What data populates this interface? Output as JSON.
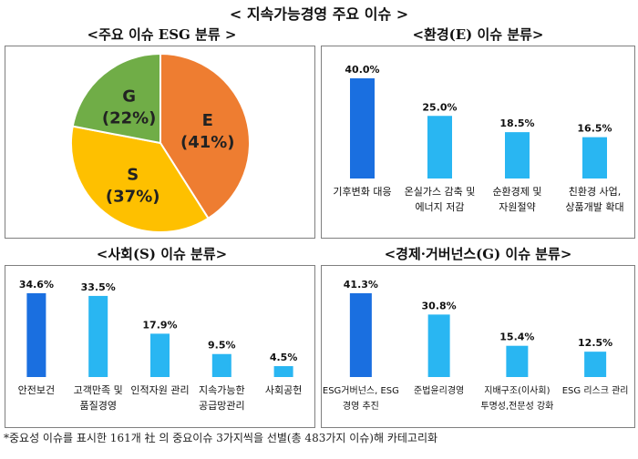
{
  "page_title": "< 지속가능경영 주요 이슈 >",
  "footnote": "*중요성 이슈를 표시한 161개 社 의 중요이슈 3가지씩을 선별(총 483가지 이슈)해 카테고리화",
  "colors": {
    "dark_bar": "#1a6fe0",
    "light_bar": "#29b6f2",
    "e_slice": "#ee7d31",
    "s_slice": "#fec000",
    "g_slice": "#70ad47"
  },
  "chart_data": [
    {
      "type": "pie",
      "title": "<주요 이슈 ESG 분류 >",
      "slices": [
        {
          "label": "E",
          "pct_label": "(41%)",
          "value": 41,
          "color": "#ee7d31"
        },
        {
          "label": "S",
          "pct_label": "(37%)",
          "value": 37,
          "color": "#fec000"
        },
        {
          "label": "G",
          "pct_label": "(22%)",
          "value": 22,
          "color": "#70ad47"
        }
      ]
    },
    {
      "type": "bar",
      "title": "<환경(E) 이슈 분류>",
      "categories": [
        [
          "기후변화 대응"
        ],
        [
          "온실가스 감축 및",
          "에너지 저감"
        ],
        [
          "순환경제 및",
          "자원절약"
        ],
        [
          "친환경 사업,",
          "상품개발 확대"
        ]
      ],
      "values": [
        40.0,
        25.0,
        18.5,
        16.5
      ],
      "labels": [
        "40.0%",
        "25.0%",
        "18.5%",
        "16.5%"
      ],
      "ylim": [
        0,
        40
      ]
    },
    {
      "type": "bar",
      "title": "<사회(S) 이슈 분류>",
      "categories": [
        [
          "안전보건"
        ],
        [
          "고객만족 및",
          "품질경영"
        ],
        [
          "인적자원 관리"
        ],
        [
          "지속가능한",
          "공급망관리"
        ],
        [
          "사회공헌"
        ]
      ],
      "values": [
        34.6,
        33.5,
        17.9,
        9.5,
        4.5
      ],
      "labels": [
        "34.6%",
        "33.5%",
        "17.9%",
        "9.5%",
        "4.5%"
      ],
      "ylim": [
        0,
        34.6
      ]
    },
    {
      "type": "bar",
      "title": "<경제·거버넌스(G) 이슈 분류>",
      "categories": [
        [
          "ESG거버넌스, ESG",
          "경영 추진"
        ],
        [
          "준법윤리경영"
        ],
        [
          "지배구조(이사회)",
          "투명성,전문성 강화"
        ],
        [
          "ESG 리스크 관리"
        ]
      ],
      "values": [
        41.3,
        30.8,
        15.4,
        12.5
      ],
      "labels": [
        "41.3%",
        "30.8%",
        "15.4%",
        "12.5%"
      ],
      "ylim": [
        0,
        41.3
      ]
    }
  ]
}
